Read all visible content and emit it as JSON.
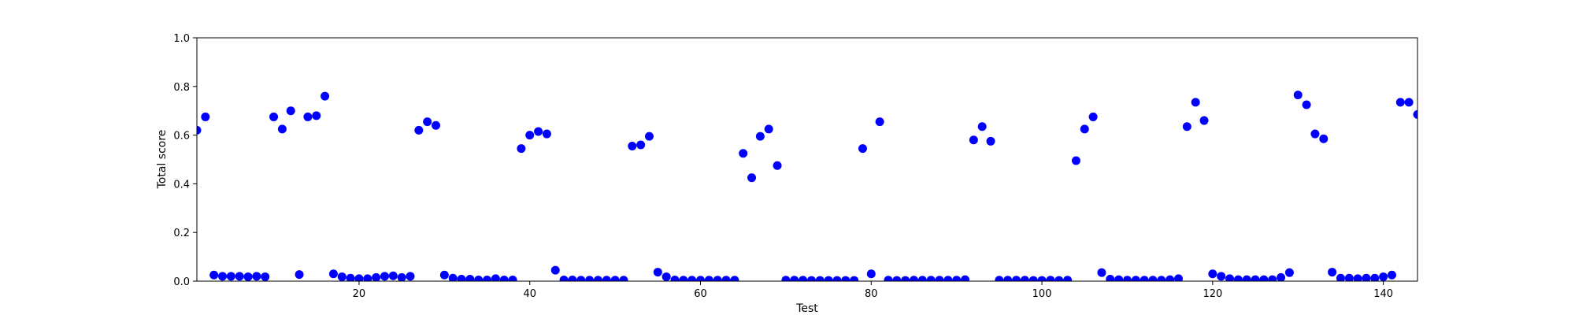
{
  "chart_data": {
    "type": "scatter",
    "xlabel": "Test",
    "ylabel": "Total score",
    "xlim": [
      1,
      144
    ],
    "ylim": [
      0,
      1.0
    ],
    "xticks": [
      20,
      40,
      60,
      80,
      100,
      120,
      140
    ],
    "yticks": [
      0.0,
      0.2,
      0.4,
      0.6,
      0.8,
      1.0
    ],
    "ytick_labels": [
      "0.0",
      "0.2",
      "0.4",
      "0.6",
      "0.8",
      "1.0"
    ],
    "xtick_labels": [
      "20",
      "40",
      "60",
      "80",
      "100",
      "120",
      "140"
    ],
    "grid": false,
    "marker_color": "#0000ff",
    "x": [
      1,
      2,
      3,
      4,
      5,
      6,
      7,
      8,
      9,
      10,
      11,
      12,
      13,
      14,
      15,
      16,
      17,
      18,
      19,
      20,
      21,
      22,
      23,
      24,
      25,
      26,
      27,
      28,
      29,
      30,
      31,
      32,
      33,
      34,
      35,
      36,
      37,
      38,
      39,
      40,
      41,
      42,
      43,
      44,
      45,
      46,
      47,
      48,
      49,
      50,
      51,
      52,
      53,
      54,
      55,
      56,
      57,
      58,
      59,
      60,
      61,
      62,
      63,
      64,
      65,
      66,
      67,
      68,
      69,
      70,
      71,
      72,
      73,
      74,
      75,
      76,
      77,
      78,
      79,
      80,
      81,
      82,
      83,
      84,
      85,
      86,
      87,
      88,
      89,
      90,
      91,
      92,
      93,
      94,
      95,
      96,
      97,
      98,
      99,
      100,
      101,
      102,
      103,
      104,
      105,
      106,
      107,
      108,
      109,
      110,
      111,
      112,
      113,
      114,
      115,
      116,
      117,
      118,
      119,
      120,
      121,
      122,
      123,
      124,
      125,
      126,
      127,
      128,
      129,
      130,
      131,
      132,
      133,
      134,
      135,
      136,
      137,
      138,
      139,
      140,
      141,
      142,
      143,
      144
    ],
    "y": [
      0.62,
      0.675,
      0.025,
      0.02,
      0.02,
      0.02,
      0.018,
      0.02,
      0.018,
      0.675,
      0.625,
      0.7,
      0.027,
      0.675,
      0.68,
      0.76,
      0.03,
      0.018,
      0.012,
      0.01,
      0.01,
      0.015,
      0.02,
      0.022,
      0.015,
      0.02,
      0.62,
      0.655,
      0.64,
      0.025,
      0.012,
      0.008,
      0.008,
      0.005,
      0.005,
      0.01,
      0.005,
      0.005,
      0.545,
      0.6,
      0.615,
      0.605,
      0.045,
      0.005,
      0.005,
      0.004,
      0.004,
      0.004,
      0.004,
      0.004,
      0.004,
      0.555,
      0.56,
      0.595,
      0.037,
      0.018,
      0.005,
      0.004,
      0.004,
      0.004,
      0.004,
      0.004,
      0.004,
      0.004,
      0.525,
      0.425,
      0.595,
      0.625,
      0.475,
      0.004,
      0.004,
      0.004,
      0.003,
      0.003,
      0.003,
      0.003,
      0.003,
      0.003,
      0.545,
      0.03,
      0.655,
      0.004,
      0.003,
      0.003,
      0.004,
      0.004,
      0.004,
      0.004,
      0.004,
      0.004,
      0.006,
      0.58,
      0.635,
      0.575,
      0.004,
      0.004,
      0.004,
      0.004,
      0.003,
      0.003,
      0.004,
      0.003,
      0.004,
      0.495,
      0.625,
      0.675,
      0.035,
      0.008,
      0.006,
      0.004,
      0.004,
      0.004,
      0.004,
      0.004,
      0.006,
      0.01,
      0.635,
      0.735,
      0.66,
      0.03,
      0.02,
      0.01,
      0.006,
      0.006,
      0.006,
      0.006,
      0.006,
      0.015,
      0.035,
      0.765,
      0.725,
      0.605,
      0.585,
      0.037,
      0.012,
      0.012,
      0.01,
      0.012,
      0.012,
      0.018,
      0.025,
      0.735,
      0.735,
      0.685
    ]
  }
}
